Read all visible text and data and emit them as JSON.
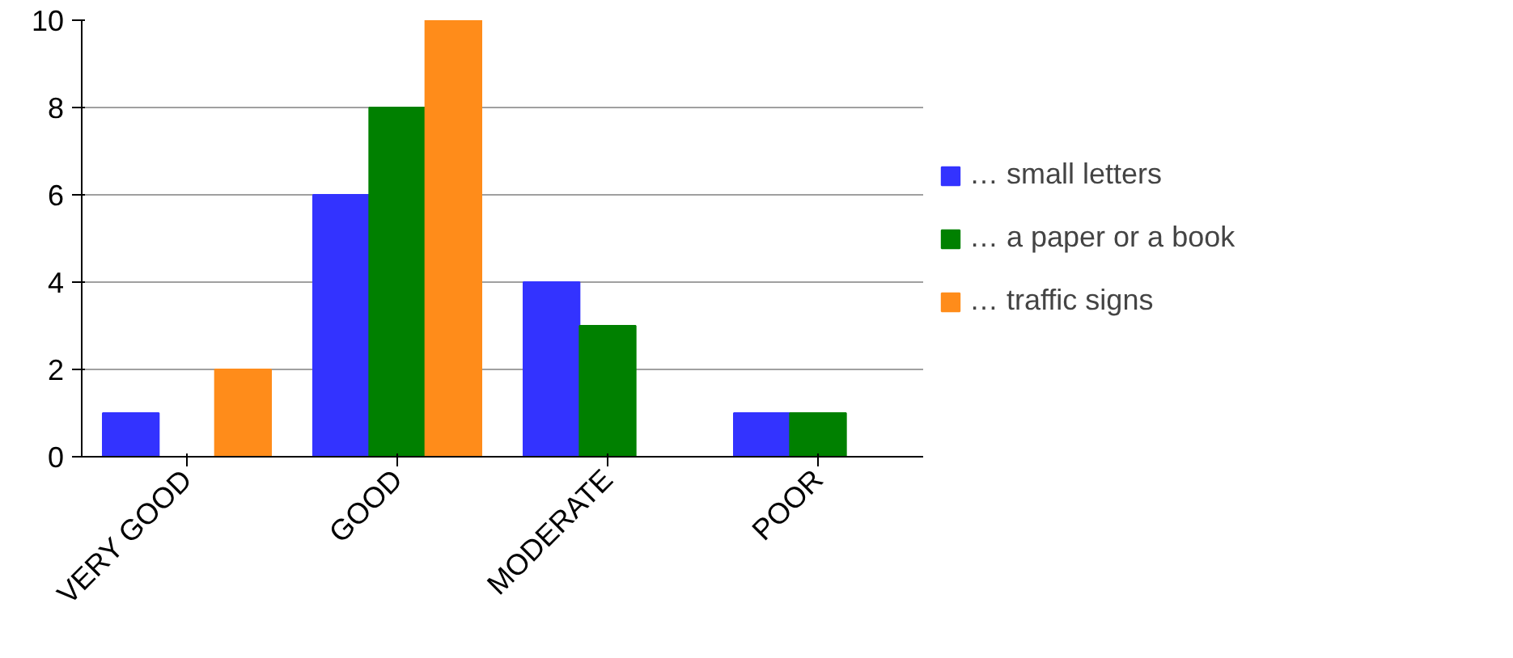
{
  "chart_data": {
    "type": "bar",
    "categories": [
      "VERY GOOD",
      "GOOD",
      "MODERATE",
      "POOR"
    ],
    "series": [
      {
        "name": "… small letters",
        "color": "#3333ff",
        "values": [
          1,
          6,
          4,
          1
        ]
      },
      {
        "name": "… a paper or a book",
        "color": "#008000",
        "values": [
          0,
          8,
          3,
          1
        ]
      },
      {
        "name": "… traffic signs",
        "color": "#ff8c1a",
        "values": [
          2,
          10,
          0,
          0
        ]
      }
    ],
    "ylim": [
      0,
      10
    ],
    "yticks": [
      0,
      2,
      4,
      6,
      8,
      10
    ],
    "grid": "y",
    "legend": "right"
  }
}
